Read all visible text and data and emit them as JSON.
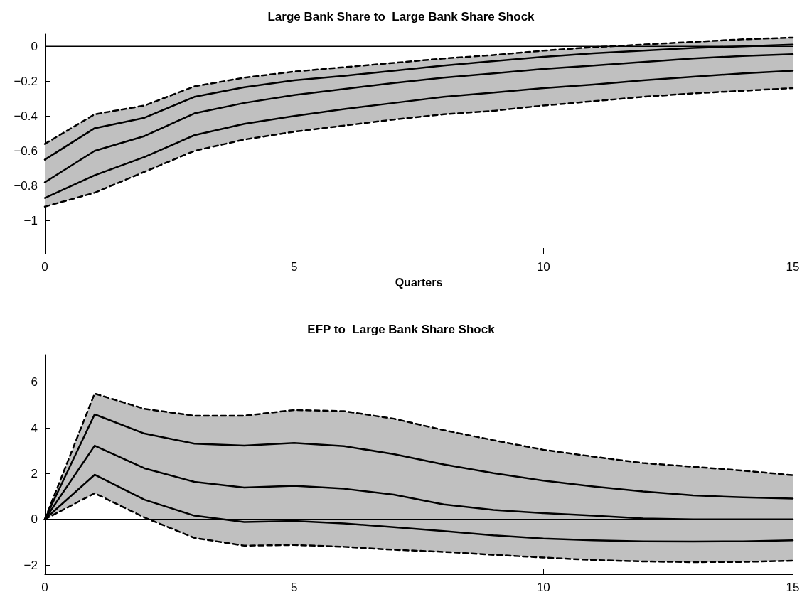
{
  "chart_data": [
    {
      "type": "line",
      "title": "Large Bank Share to  Large Bank Share Shock",
      "xlabel": "Quarters",
      "x": [
        0,
        1,
        2,
        3,
        4,
        5,
        6,
        7,
        8,
        9,
        10,
        11,
        12,
        13,
        14,
        15
      ],
      "xlim": [
        0,
        15
      ],
      "xticks": [
        0,
        5,
        10,
        15
      ],
      "ylim": [
        -1.19,
        0.07
      ],
      "yticks": [
        {
          "value": -1,
          "label": "−1"
        },
        {
          "value": -0.8,
          "label": "−0.8"
        },
        {
          "value": -0.6,
          "label": "−0.6"
        },
        {
          "value": -0.4,
          "label": "−0.4"
        },
        {
          "value": -0.2,
          "label": "−0.2"
        },
        0
      ],
      "grid": false,
      "marker": "none",
      "ref_lines": [
        {
          "axis": "y",
          "value": 0,
          "color": "#000000"
        }
      ],
      "series": [
        {
          "color": "#000000",
          "line_style": "dashed",
          "values": [
            -0.56,
            -0.39,
            -0.34,
            -0.23,
            -0.18,
            -0.145,
            -0.12,
            -0.095,
            -0.07,
            -0.05,
            -0.025,
            -0.005,
            0.01,
            0.025,
            0.04,
            0.05
          ]
        },
        {
          "color": "#000000",
          "line_style": "solid",
          "values": [
            -0.65,
            -0.47,
            -0.41,
            -0.29,
            -0.235,
            -0.195,
            -0.17,
            -0.14,
            -0.11,
            -0.085,
            -0.06,
            -0.04,
            -0.025,
            -0.01,
            0.0,
            0.01
          ]
        },
        {
          "color": "#000000",
          "line_style": "solid",
          "values": [
            -0.78,
            -0.6,
            -0.515,
            -0.385,
            -0.325,
            -0.28,
            -0.245,
            -0.21,
            -0.18,
            -0.155,
            -0.13,
            -0.11,
            -0.09,
            -0.07,
            -0.055,
            -0.045
          ],
          "lower": [
            -0.92,
            -0.84,
            -0.72,
            -0.6,
            -0.535,
            -0.49,
            -0.455,
            -0.42,
            -0.39,
            -0.37,
            -0.34,
            -0.315,
            -0.29,
            -0.27,
            -0.255,
            -0.24
          ],
          "upper": [
            -0.56,
            -0.39,
            -0.34,
            -0.23,
            -0.18,
            -0.145,
            -0.12,
            -0.095,
            -0.07,
            -0.05,
            -0.025,
            -0.005,
            0.01,
            0.025,
            0.04,
            0.05
          ]
        },
        {
          "color": "#000000",
          "line_style": "solid",
          "values": [
            -0.87,
            -0.74,
            -0.635,
            -0.51,
            -0.445,
            -0.4,
            -0.36,
            -0.325,
            -0.29,
            -0.265,
            -0.24,
            -0.22,
            -0.195,
            -0.175,
            -0.155,
            -0.14
          ]
        },
        {
          "color": "#000000",
          "line_style": "dashed",
          "values": [
            -0.92,
            -0.84,
            -0.72,
            -0.6,
            -0.535,
            -0.49,
            -0.455,
            -0.42,
            -0.39,
            -0.37,
            -0.34,
            -0.315,
            -0.29,
            -0.27,
            -0.255,
            -0.24
          ]
        }
      ]
    },
    {
      "type": "line",
      "title": "EFP to  Large Bank Share Shock",
      "x": [
        0,
        1,
        2,
        3,
        4,
        5,
        6,
        7,
        8,
        9,
        10,
        11,
        12,
        13,
        14,
        15
      ],
      "xlim": [
        0,
        15
      ],
      "xticks": [
        0,
        5,
        10,
        15
      ],
      "ylim": [
        -2.4,
        7.2
      ],
      "yticks": [
        {
          "value": -2,
          "label": "−2"
        },
        0,
        2,
        4,
        6
      ],
      "grid": false,
      "marker": "none",
      "ref_lines": [
        {
          "axis": "y",
          "value": 0,
          "color": "#000000"
        }
      ],
      "series": [
        {
          "color": "#000000",
          "line_style": "dashed",
          "values": [
            0,
            5.5,
            4.83,
            4.53,
            4.53,
            4.78,
            4.73,
            4.4,
            3.9,
            3.46,
            3.04,
            2.74,
            2.46,
            2.3,
            2.13,
            1.93
          ]
        },
        {
          "color": "#000000",
          "line_style": "solid",
          "values": [
            0,
            4.59,
            3.75,
            3.31,
            3.22,
            3.34,
            3.2,
            2.85,
            2.4,
            2.02,
            1.69,
            1.44,
            1.22,
            1.05,
            0.96,
            0.91
          ]
        },
        {
          "color": "#000000",
          "line_style": "solid",
          "values": [
            0,
            3.22,
            2.23,
            1.64,
            1.39,
            1.47,
            1.34,
            1.08,
            0.65,
            0.41,
            0.27,
            0.16,
            0.04,
            0.0,
            0.0,
            0.0
          ],
          "lower": [
            0,
            1.14,
            0.08,
            -0.81,
            -1.15,
            -1.12,
            -1.2,
            -1.33,
            -1.42,
            -1.55,
            -1.67,
            -1.78,
            -1.84,
            -1.87,
            -1.86,
            -1.81
          ],
          "upper": [
            0,
            5.5,
            4.83,
            4.53,
            4.53,
            4.78,
            4.73,
            4.4,
            3.9,
            3.46,
            3.04,
            2.74,
            2.46,
            2.3,
            2.13,
            1.93
          ]
        },
        {
          "color": "#000000",
          "line_style": "solid",
          "values": [
            0,
            1.95,
            0.86,
            0.16,
            -0.12,
            -0.07,
            -0.18,
            -0.34,
            -0.51,
            -0.7,
            -0.84,
            -0.92,
            -0.96,
            -0.97,
            -0.96,
            -0.92
          ]
        },
        {
          "color": "#000000",
          "line_style": "dashed",
          "values": [
            0,
            1.14,
            0.08,
            -0.81,
            -1.15,
            -1.12,
            -1.2,
            -1.33,
            -1.42,
            -1.55,
            -1.67,
            -1.78,
            -1.84,
            -1.87,
            -1.86,
            -1.81
          ]
        }
      ]
    }
  ]
}
